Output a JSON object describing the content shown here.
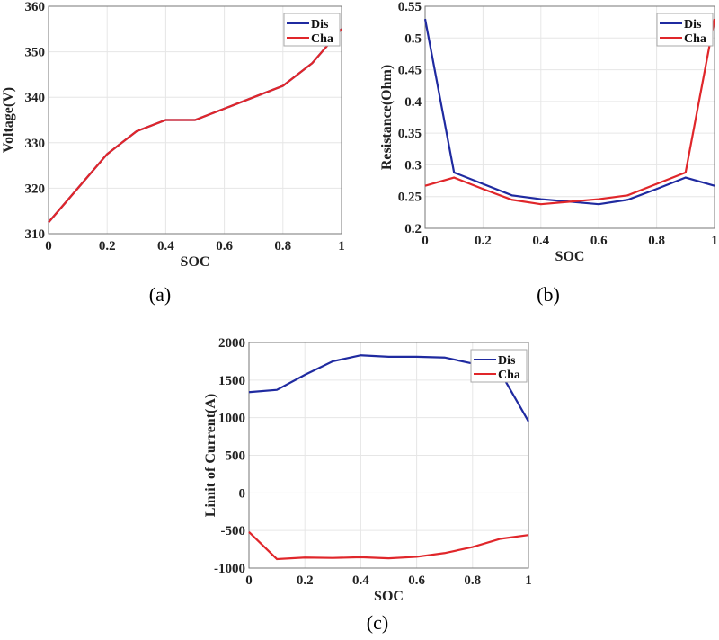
{
  "colors": {
    "dis": "#1f2aa0",
    "cha": "#e0262a",
    "grid": "#e6e6e6"
  },
  "chart_data": [
    {
      "type": "line",
      "id": "a",
      "caption": "(a)",
      "xlabel": "SOC",
      "ylabel": "Voltage(V)",
      "xlim": [
        0,
        1
      ],
      "ylim": [
        310,
        360
      ],
      "xticks": [
        0,
        0.2,
        0.4,
        0.6,
        0.8,
        1
      ],
      "xtick_labels": [
        "0",
        "0.2",
        "0.4",
        "0.6",
        "0.8",
        "1"
      ],
      "yticks": [
        310,
        320,
        330,
        340,
        350,
        360
      ],
      "ytick_labels": [
        "310",
        "320",
        "330",
        "340",
        "350",
        "360"
      ],
      "grid": true,
      "legend": "top-right",
      "x": [
        0,
        0.1,
        0.2,
        0.3,
        0.4,
        0.5,
        0.6,
        0.7,
        0.8,
        0.9,
        1
      ],
      "series": [
        {
          "name": "Dis",
          "values": [
            312.5,
            320,
            327.5,
            332.5,
            335,
            335,
            337.5,
            340,
            342.5,
            347.5,
            355
          ]
        },
        {
          "name": "Cha",
          "values": [
            312.5,
            320,
            327.5,
            332.5,
            335,
            335,
            337.5,
            340,
            342.5,
            347.5,
            355
          ]
        }
      ]
    },
    {
      "type": "line",
      "id": "b",
      "caption": "(b)",
      "xlabel": "SOC",
      "ylabel": "Resistance(Ohm)",
      "xlim": [
        0,
        1
      ],
      "ylim": [
        0.2,
        0.55
      ],
      "xticks": [
        0,
        0.2,
        0.4,
        0.6,
        0.8,
        1
      ],
      "xtick_labels": [
        "0",
        "0.2",
        "0.4",
        "0.6",
        "0.8",
        "1"
      ],
      "yticks": [
        0.2,
        0.25,
        0.3,
        0.35,
        0.4,
        0.45,
        0.5,
        0.55
      ],
      "ytick_labels": [
        "0.2",
        "0.25",
        "0.3",
        "0.35",
        "0.4",
        "0.45",
        "0.5",
        "0.55"
      ],
      "grid": true,
      "legend": "top-right",
      "x": [
        0,
        0.1,
        0.2,
        0.3,
        0.4,
        0.5,
        0.6,
        0.7,
        0.8,
        0.9,
        1
      ],
      "series": [
        {
          "name": "Dis",
          "values": [
            0.53,
            0.288,
            0.27,
            0.252,
            0.246,
            0.242,
            0.238,
            0.245,
            0.262,
            0.28,
            0.267
          ]
        },
        {
          "name": "Cha",
          "values": [
            0.267,
            0.28,
            0.262,
            0.245,
            0.238,
            0.242,
            0.246,
            0.252,
            0.27,
            0.288,
            0.53
          ]
        }
      ]
    },
    {
      "type": "line",
      "id": "c",
      "caption": "(c)",
      "xlabel": "SOC",
      "ylabel": "Limit of Current(A)",
      "xlim": [
        0,
        1
      ],
      "ylim": [
        -1000,
        2000
      ],
      "xticks": [
        0,
        0.2,
        0.4,
        0.6,
        0.8,
        1
      ],
      "xtick_labels": [
        "0",
        "0.2",
        "0.4",
        "0.6",
        "0.8",
        "1"
      ],
      "yticks": [
        -1000,
        -500,
        0,
        500,
        1000,
        1500,
        2000
      ],
      "ytick_labels": [
        "-1000",
        "-500",
        "0",
        "500",
        "1000",
        "1500",
        "2000"
      ],
      "grid": true,
      "legend": "top-right",
      "x": [
        0,
        0.1,
        0.2,
        0.3,
        0.4,
        0.5,
        0.6,
        0.7,
        0.8,
        0.9,
        1
      ],
      "series": [
        {
          "name": "Dis",
          "values": [
            1340,
            1370,
            1570,
            1750,
            1830,
            1810,
            1810,
            1800,
            1720,
            1600,
            950
          ]
        },
        {
          "name": "Cha",
          "values": [
            -520,
            -880,
            -860,
            -865,
            -855,
            -870,
            -850,
            -800,
            -720,
            -610,
            -560
          ]
        }
      ]
    }
  ]
}
